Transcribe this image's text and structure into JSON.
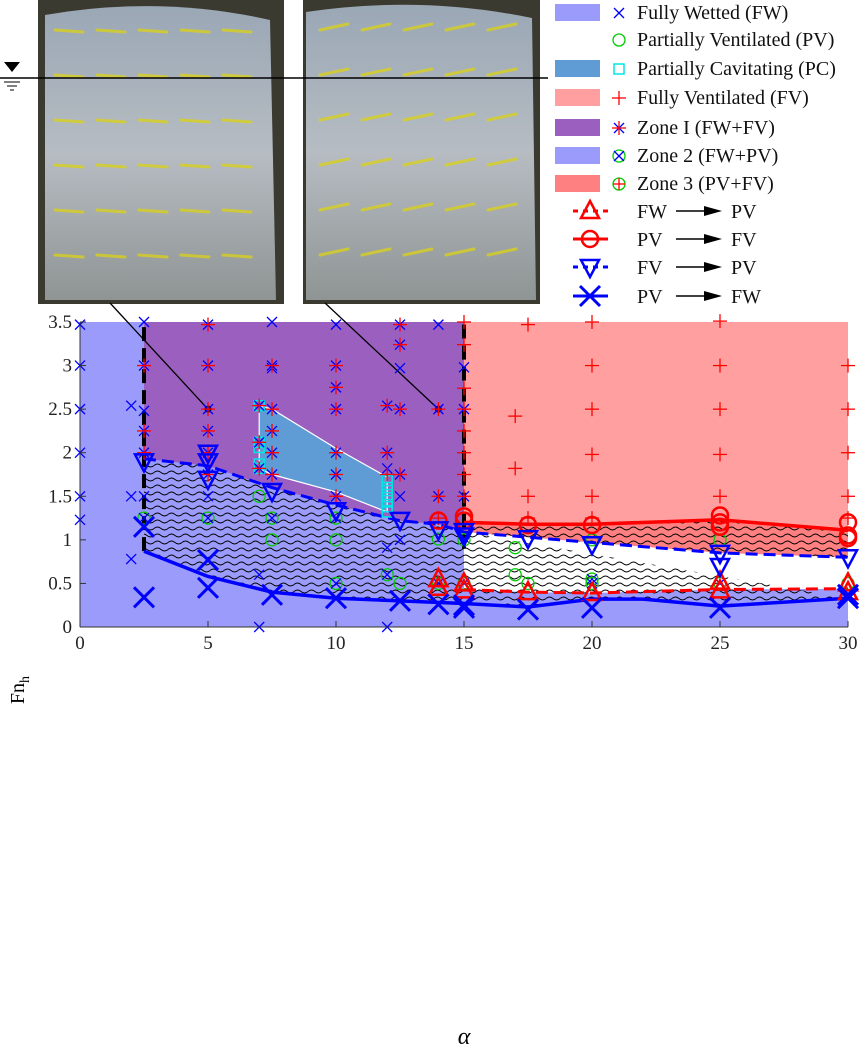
{
  "chart_data": {
    "type": "scatter",
    "xlabel": "α",
    "ylabel": "Fn",
    "ylabel_sub": "h",
    "xlim": [
      0,
      30
    ],
    "ylim": [
      0,
      3.5
    ],
    "xticks": [
      0,
      5,
      10,
      15,
      20,
      25,
      30
    ],
    "yticks": [
      0,
      0.5,
      1,
      1.5,
      2,
      2.5,
      3,
      3.5
    ],
    "grid": false,
    "legend_position": "top-right",
    "colors": {
      "FW": "#9b9bfb",
      "PC": "#5f9cd5",
      "FV": "#ff9f9f",
      "zone1": "#9b5fc0",
      "zone2": "#9b9bfb",
      "zone3": "#ff8080",
      "blue": "#0000ff",
      "red": "#ff0000",
      "green": "#00cc00",
      "cyan": "#00e5e5"
    },
    "regions": {
      "zone1_x": [
        2.5,
        15
      ],
      "fv_x": [
        15,
        30
      ],
      "pc_polygon": [
        [
          7,
          2.54
        ],
        [
          7.5,
          2.5
        ],
        [
          10,
          2.05
        ],
        [
          12,
          1.72
        ],
        [
          12,
          1.32
        ],
        [
          10,
          1.55
        ],
        [
          7.5,
          1.75
        ],
        [
          7,
          1.82
        ]
      ]
    },
    "curves": {
      "FV_to_PV_dashed_blue": [
        [
          2.5,
          1.93
        ],
        [
          5,
          1.85
        ],
        [
          7.5,
          1.6
        ],
        [
          10,
          1.4
        ],
        [
          12.5,
          1.22
        ],
        [
          14,
          1.18
        ],
        [
          15,
          1.09
        ],
        [
          17.5,
          1.03
        ],
        [
          20,
          0.97
        ],
        [
          25,
          0.85
        ],
        [
          30,
          0.8
        ]
      ],
      "PV_to_FW_solid_blue": [
        [
          2.5,
          0.87
        ],
        [
          5,
          0.58
        ],
        [
          7.5,
          0.4
        ],
        [
          10,
          0.33
        ],
        [
          12.5,
          0.3
        ],
        [
          15,
          0.27
        ],
        [
          17.5,
          0.23
        ],
        [
          20,
          0.32
        ],
        [
          22,
          0.32
        ],
        [
          25,
          0.24
        ],
        [
          30,
          0.33
        ]
      ],
      "PV_to_FV_solid_red": [
        [
          15,
          1.2
        ],
        [
          17.5,
          1.18
        ],
        [
          20,
          1.18
        ],
        [
          25,
          1.23
        ],
        [
          30,
          1.11
        ]
      ],
      "FW_to_PV_dashed_red": [
        [
          15,
          0.43
        ],
        [
          17.5,
          0.4
        ],
        [
          20,
          0.39
        ],
        [
          25,
          0.43
        ],
        [
          30,
          0.44
        ]
      ],
      "vertical_dashed_black": [
        [
          2.5,
          0.87,
          3.5
        ],
        [
          15,
          0.9,
          3.5
        ]
      ]
    },
    "series": [
      {
        "name": "Fully Wetted (FW)",
        "marker": "x",
        "points": [
          [
            0,
            3.47
          ],
          [
            0,
            3
          ],
          [
            0,
            2.5
          ],
          [
            0,
            2
          ],
          [
            0,
            1.5
          ],
          [
            0,
            1.23
          ],
          [
            2,
            2.54
          ],
          [
            2,
            1.5
          ],
          [
            2,
            0.78
          ],
          [
            2.5,
            3.5
          ],
          [
            2.5,
            2.48
          ],
          [
            2.5,
            1.5
          ],
          [
            5,
            1.5
          ],
          [
            7,
            0.6
          ],
          [
            7,
            0
          ],
          [
            7.5,
            3.5
          ],
          [
            7.5,
            2.97
          ],
          [
            10,
            3.47
          ],
          [
            12,
            1.82
          ],
          [
            12,
            0.91
          ],
          [
            12,
            0
          ],
          [
            12.5,
            2.97
          ],
          [
            12.5,
            1.5
          ],
          [
            12.5,
            1.0
          ],
          [
            14,
            3.47
          ],
          [
            15,
            2.98
          ]
        ]
      },
      {
        "name": "Partially Ventilated (PV)",
        "marker": "circle",
        "points": [
          [
            7,
            1.5
          ],
          [
            7.5,
            1.0
          ],
          [
            10,
            1.0
          ],
          [
            12.5,
            0.5
          ],
          [
            14,
            1.01
          ],
          [
            15,
            1.0
          ],
          [
            17,
            0.91
          ],
          [
            17,
            0.6
          ],
          [
            17.5,
            0.5
          ],
          [
            20,
            1.0
          ],
          [
            25,
            1.0
          ],
          [
            30,
            0.5
          ]
        ]
      },
      {
        "name": "Partially Cavitating (PC)",
        "marker": "square",
        "points": [
          [
            7,
            2.54
          ],
          [
            7,
            2.12
          ],
          [
            7,
            2.06
          ],
          [
            7,
            1.87
          ],
          [
            7,
            1.82
          ],
          [
            12,
            1.68
          ],
          [
            12,
            1.6
          ],
          [
            12,
            1.52
          ],
          [
            12,
            1.45
          ],
          [
            12,
            1.38
          ],
          [
            12,
            1.32
          ]
        ]
      },
      {
        "name": "Fully Ventilated (FV)",
        "marker": "plus",
        "points": [
          [
            15,
            3.5
          ],
          [
            15,
            3.24
          ],
          [
            15,
            2.74
          ],
          [
            15,
            2.25
          ],
          [
            15,
            2
          ],
          [
            15,
            1.75
          ],
          [
            17,
            2.42
          ],
          [
            17,
            1.82
          ],
          [
            17.5,
            3.47
          ],
          [
            17.5,
            1.5
          ],
          [
            17.5,
            1.25
          ],
          [
            20,
            3.5
          ],
          [
            20,
            3
          ],
          [
            20,
            2.5
          ],
          [
            20,
            1.98
          ],
          [
            20,
            1.5
          ],
          [
            20,
            1.25
          ],
          [
            25,
            3.51
          ],
          [
            25,
            3
          ],
          [
            25,
            2.5
          ],
          [
            25,
            1.98
          ],
          [
            25,
            1.5
          ],
          [
            30,
            3
          ],
          [
            30,
            2.5
          ],
          [
            30,
            2
          ],
          [
            30,
            1.5
          ],
          [
            30,
            1.25
          ],
          [
            12,
            1.75
          ],
          [
            14,
            1.25
          ]
        ]
      },
      {
        "name": "Zone I (FW+FV)",
        "marker": "asterisk",
        "points": [
          [
            2.5,
            3
          ],
          [
            2.5,
            2.25
          ],
          [
            2.5,
            2
          ],
          [
            5,
            3.47
          ],
          [
            5,
            3
          ],
          [
            5,
            2.5
          ],
          [
            5,
            2.25
          ],
          [
            5,
            2
          ],
          [
            5,
            1.75
          ],
          [
            7,
            2.54
          ],
          [
            7,
            2.12
          ],
          [
            7,
            1.82
          ],
          [
            7.5,
            3
          ],
          [
            7.5,
            2.5
          ],
          [
            7.5,
            2.25
          ],
          [
            7.5,
            2
          ],
          [
            7.5,
            1.75
          ],
          [
            10,
            3
          ],
          [
            10,
            2.75
          ],
          [
            10,
            2.5
          ],
          [
            10,
            2
          ],
          [
            10,
            1.75
          ],
          [
            10,
            1.5
          ],
          [
            12,
            2.54
          ],
          [
            12,
            2
          ],
          [
            12.5,
            3.47
          ],
          [
            12.5,
            3.24
          ],
          [
            12.5,
            2.5
          ],
          [
            12.5,
            1.75
          ],
          [
            14,
            2.5
          ],
          [
            14,
            1.5
          ],
          [
            15,
            2.5
          ],
          [
            15,
            1.5
          ]
        ]
      },
      {
        "name": "Zone 2 (FW+PV)",
        "marker": "circle-x",
        "points": [
          [
            2.5,
            1.25
          ],
          [
            5,
            1.25
          ],
          [
            7.5,
            1.25
          ],
          [
            10,
            1.25
          ],
          [
            10,
            0.5
          ],
          [
            12,
            0.6
          ],
          [
            14,
            0.5
          ],
          [
            15,
            0.5
          ],
          [
            20,
            0.55
          ],
          [
            20,
            0.5
          ],
          [
            25,
            0.5
          ]
        ]
      },
      {
        "name": "Zone 3 (PV+FV)",
        "marker": "circle-plus",
        "points": []
      },
      {
        "name": "FW → PV",
        "marker": "triangle-up",
        "points": [
          [
            14,
            0.55
          ],
          [
            14,
            0.45
          ],
          [
            15,
            0.5
          ],
          [
            15,
            0.42
          ],
          [
            17.5,
            0.4
          ],
          [
            20,
            0.39
          ],
          [
            25,
            0.52
          ],
          [
            25,
            0.42
          ],
          [
            30,
            0.5
          ],
          [
            30,
            0.4
          ]
        ]
      },
      {
        "name": "PV → FV",
        "marker": "big-circle",
        "points": [
          [
            14,
            1.22
          ],
          [
            15,
            1.27
          ],
          [
            15,
            1.22
          ],
          [
            17.5,
            1.17
          ],
          [
            20,
            1.17
          ],
          [
            25,
            1.28
          ],
          [
            25,
            1.2
          ],
          [
            25,
            1.15
          ],
          [
            30,
            1.2
          ],
          [
            30,
            1.05
          ],
          [
            30,
            1.02
          ]
        ]
      },
      {
        "name": "FV → PV",
        "marker": "triangle-down",
        "points": [
          [
            2.5,
            1.9
          ],
          [
            5,
            2
          ],
          [
            5,
            1.9
          ],
          [
            5,
            1.7
          ],
          [
            7.5,
            1.56
          ],
          [
            10,
            1.34
          ],
          [
            12.5,
            1.23
          ],
          [
            14,
            1.12
          ],
          [
            15,
            1.1
          ],
          [
            15,
            1.05
          ],
          [
            17.5,
            1.02
          ],
          [
            20,
            0.95
          ],
          [
            25,
            0.85
          ],
          [
            25,
            0.7
          ],
          [
            30,
            0.8
          ]
        ]
      },
      {
        "name": "PV → FW",
        "marker": "big-x",
        "points": [
          [
            2.5,
            1.15
          ],
          [
            2.5,
            0.34
          ],
          [
            5,
            0.77
          ],
          [
            5,
            0.45
          ],
          [
            7.5,
            0.37
          ],
          [
            10,
            0.33
          ],
          [
            12.5,
            0.3
          ],
          [
            14,
            0.26
          ],
          [
            15,
            0.25
          ],
          [
            15,
            0.22
          ],
          [
            17.5,
            0.2
          ],
          [
            20,
            0.22
          ],
          [
            25,
            0.22
          ],
          [
            30,
            0.33
          ],
          [
            30,
            0.37
          ]
        ]
      }
    ],
    "photo_callouts": [
      [
        5,
        2.5
      ],
      [
        14,
        2.5
      ]
    ]
  },
  "legend": {
    "items": [
      {
        "label": "Fully Wetted (FW)",
        "swatch": "#9b9bfb",
        "marker": "x"
      },
      {
        "label": "Partially Ventilated (PV)",
        "swatch": "",
        "marker": "circle"
      },
      {
        "label": "Partially Cavitating (PC)",
        "swatch": "#5f9cd5",
        "marker": "square"
      },
      {
        "label": "Fully Ventilated (FV)",
        "swatch": "#ff9f9f",
        "marker": "plus"
      },
      {
        "label": "Zone I (FW+FV)",
        "swatch": "#9b5fc0",
        "marker": "asterisk"
      },
      {
        "label": "Zone 2 (FW+PV)",
        "swatch": "#9b9bfb",
        "marker": "circle-x"
      },
      {
        "label": "Zone 3 (PV+FV)",
        "swatch": "#ff8080",
        "marker": "circle-plus"
      }
    ],
    "transitions": [
      {
        "from": "FW",
        "to": "PV",
        "marker": "triangle-up"
      },
      {
        "from": "PV",
        "to": "FV",
        "marker": "big-circle"
      },
      {
        "from": "FV",
        "to": "PV",
        "marker": "triangle-down"
      },
      {
        "from": "PV",
        "to": "FW",
        "marker": "big-x"
      }
    ]
  }
}
